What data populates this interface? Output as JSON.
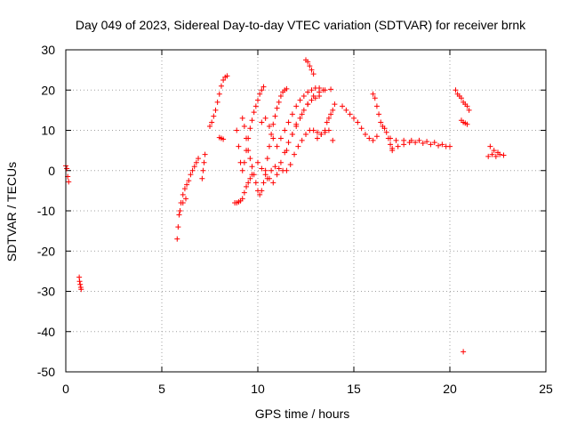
{
  "chart_data": {
    "type": "scatter",
    "title": "Day 049 of 2023, Sidereal Day-to-day VTEC variation (SDTVAR) for receiver brnk",
    "xlabel": "GPS time / hours",
    "ylabel": "SDTVAR / TECUs",
    "xlim": [
      0,
      25
    ],
    "ylim": [
      -50,
      30
    ],
    "xticks": [
      0,
      5,
      10,
      15,
      20,
      25
    ],
    "yticks": [
      -50,
      -40,
      -30,
      -20,
      -10,
      0,
      10,
      20,
      30
    ],
    "xtick_labels": [
      "0",
      "5",
      "10",
      "15",
      "20",
      "25"
    ],
    "ytick_labels": [
      "-50",
      "-40",
      "-30",
      "-20",
      "-10",
      "0",
      "10",
      "20",
      "30"
    ],
    "grid": true,
    "marker": "+",
    "color": "#ff0000",
    "series": [
      {
        "name": "a0",
        "x": [
          0.0,
          0.05,
          0.1,
          0.15
        ],
        "y": [
          1.2,
          0.5,
          -1.5,
          -2.8
        ]
      },
      {
        "name": "a1",
        "x": [
          0.7,
          0.72,
          0.75,
          0.78,
          0.8
        ],
        "y": [
          -26.5,
          -27.5,
          -28.3,
          -29.0,
          -29.5
        ]
      },
      {
        "name": "b",
        "x": [
          5.8,
          5.85,
          5.9,
          6.0,
          6.1,
          6.2,
          6.3,
          6.4,
          6.5,
          6.6,
          6.7,
          6.8,
          6.9
        ],
        "y": [
          -17.0,
          -14.0,
          -11.0,
          -8.0,
          -6.0,
          -4.5,
          -3.5,
          -2.5,
          -1.0,
          0.0,
          1.0,
          2.0,
          3.0
        ]
      },
      {
        "name": "b2",
        "x": [
          5.95,
          6.1,
          6.25
        ],
        "y": [
          -10.0,
          -8.0,
          -7.0
        ]
      },
      {
        "name": "c",
        "x": [
          7.1,
          7.15,
          7.2,
          7.25
        ],
        "y": [
          -2.0,
          0.0,
          2.0,
          4.0
        ]
      },
      {
        "name": "d",
        "x": [
          7.5,
          7.6,
          7.7,
          7.8,
          7.9,
          8.0,
          8.1,
          8.2,
          8.3,
          8.4
        ],
        "y": [
          11.0,
          12.0,
          13.5,
          15.0,
          17.0,
          19.0,
          21.0,
          22.5,
          23.2,
          23.5
        ]
      },
      {
        "name": "e",
        "x": [
          8.0,
          8.1,
          8.2
        ],
        "y": [
          8.2,
          8.0,
          7.8
        ]
      },
      {
        "name": "f",
        "x": [
          8.8,
          8.9,
          9.0,
          9.1,
          9.2,
          9.3,
          9.4,
          9.5,
          9.6,
          9.7
        ],
        "y": [
          -8.0,
          -8.0,
          -7.8,
          -7.5,
          -7.0,
          -5.5,
          -4.0,
          -3.0,
          -2.0,
          -1.0
        ]
      },
      {
        "name": "g",
        "x": [
          8.9,
          9.0,
          9.1,
          9.2,
          9.3,
          9.4,
          9.5,
          9.6,
          9.7,
          9.8,
          9.9,
          10.0,
          10.1,
          10.2,
          10.3
        ],
        "y": [
          10.0,
          6.0,
          2.0,
          0.0,
          2.0,
          5.0,
          8.0,
          10.5,
          12.5,
          14.5,
          16.0,
          17.5,
          19.0,
          20.0,
          20.8
        ]
      },
      {
        "name": "h",
        "x": [
          9.2,
          9.3,
          9.4,
          9.5,
          9.6,
          9.7,
          9.8,
          9.9,
          10.0,
          10.1,
          10.2,
          10.3,
          10.4,
          10.5,
          10.6,
          10.7,
          10.8,
          10.9,
          11.0,
          11.1,
          11.2,
          11.3,
          11.4,
          11.5
        ],
        "y": [
          13.0,
          11.0,
          8.0,
          5.0,
          3.0,
          1.0,
          -1.0,
          -3.0,
          -5.0,
          -6.0,
          -5.0,
          -3.0,
          0.0,
          3.0,
          6.0,
          9.0,
          11.5,
          13.5,
          15.5,
          17.0,
          18.5,
          19.5,
          20.0,
          20.3
        ]
      },
      {
        "name": "i",
        "x": [
          10.2,
          10.4,
          10.6,
          10.8,
          11.0,
          11.2,
          11.4,
          11.6,
          11.8,
          12.0,
          12.2,
          12.4,
          12.6,
          12.8,
          13.0,
          13.2,
          13.4
        ],
        "y": [
          12.0,
          13.0,
          11.0,
          8.0,
          6.0,
          8.0,
          10.0,
          12.0,
          14.0,
          16.0,
          17.5,
          18.5,
          19.5,
          20.0,
          20.5,
          20.5,
          20.0
        ]
      },
      {
        "name": "j",
        "x": [
          10.0,
          10.2,
          10.4,
          10.6,
          10.8,
          11.0,
          11.2,
          11.4,
          11.6,
          11.8,
          12.0,
          12.2,
          12.4,
          12.6,
          12.8,
          13.0,
          13.2
        ],
        "y": [
          2.0,
          0.5,
          -1.0,
          -2.0,
          -3.0,
          -1.0,
          2.0,
          4.5,
          7.0,
          9.0,
          11.0,
          13.0,
          15.0,
          16.5,
          17.5,
          18.0,
          18.5
        ]
      },
      {
        "name": "k",
        "x": [
          10.5,
          10.7,
          10.9,
          11.1,
          11.3,
          11.5,
          11.7,
          11.9,
          12.1,
          12.3,
          12.5,
          12.7,
          12.9,
          13.1,
          13.3,
          13.5,
          13.7
        ],
        "y": [
          -2.0,
          0.0,
          1.0,
          0.5,
          0.0,
          0.0,
          1.5,
          4.0,
          6.0,
          7.5,
          9.0,
          10.0,
          10.0,
          9.5,
          9.0,
          9.5,
          10.0
        ]
      },
      {
        "name": "l",
        "x": [
          11.5,
          11.8,
          12.0,
          12.3,
          12.6,
          12.9,
          13.2,
          13.5,
          13.8
        ],
        "y": [
          5.0,
          9.0,
          11.5,
          14.0,
          16.5,
          18.5,
          19.5,
          20.0,
          20.2
        ]
      },
      {
        "name": "m",
        "x": [
          12.5,
          12.6,
          12.7,
          12.8,
          12.9
        ],
        "y": [
          27.5,
          27.0,
          26.0,
          25.0,
          24.0
        ]
      },
      {
        "name": "n",
        "x": [
          13.1,
          13.3,
          13.5,
          13.6,
          13.7,
          13.8,
          13.9,
          14.0
        ],
        "y": [
          8.0,
          9.0,
          10.0,
          12.0,
          13.0,
          14.0,
          15.0,
          16.5
        ]
      },
      {
        "name": "o",
        "x": [
          13.9
        ],
        "y": [
          7.5
        ]
      },
      {
        "name": "p",
        "x": [
          14.4,
          14.6,
          14.8,
          15.0,
          15.2,
          15.4,
          15.6,
          15.8,
          16.0,
          16.2
        ],
        "y": [
          16.0,
          15.0,
          14.0,
          13.0,
          12.0,
          10.5,
          9.0,
          8.0,
          7.5,
          8.5
        ]
      },
      {
        "name": "q",
        "x": [
          16.0,
          16.1,
          16.2,
          16.3,
          16.4,
          16.5,
          16.6,
          16.7,
          16.8,
          16.9,
          17.0
        ],
        "y": [
          19.0,
          18.0,
          16.0,
          14.0,
          12.0,
          11.0,
          10.5,
          9.5,
          8.0,
          6.5,
          5.0
        ]
      },
      {
        "name": "r",
        "x": [
          16.9,
          17.2,
          17.6,
          18.0,
          18.4,
          18.8,
          19.2,
          19.6,
          20.0
        ],
        "y": [
          8.0,
          7.5,
          7.5,
          7.5,
          7.5,
          7.2,
          7.0,
          6.5,
          6.0
        ]
      },
      {
        "name": "s",
        "x": [
          17.0,
          17.3,
          17.6,
          17.9,
          18.2,
          18.6,
          19.0,
          19.4,
          19.8
        ],
        "y": [
          5.5,
          6.0,
          6.5,
          7.0,
          7.0,
          6.8,
          6.5,
          6.2,
          6.0
        ]
      },
      {
        "name": "t",
        "x": [
          20.3,
          20.4,
          20.5,
          20.6,
          20.7,
          20.8,
          20.9,
          21.0
        ],
        "y": [
          20.0,
          19.0,
          18.5,
          18.0,
          17.0,
          16.5,
          16.0,
          15.0
        ]
      },
      {
        "name": "u",
        "x": [
          20.6,
          20.7,
          20.8,
          20.9
        ],
        "y": [
          12.5,
          12.0,
          11.8,
          11.5
        ]
      },
      {
        "name": "v",
        "x": [
          20.7
        ],
        "y": [
          -45.0
        ]
      },
      {
        "name": "w",
        "x": [
          22.0,
          22.2,
          22.4,
          22.6,
          22.8
        ],
        "y": [
          3.5,
          4.0,
          3.5,
          4.0,
          3.8
        ]
      },
      {
        "name": "w2",
        "x": [
          22.1,
          22.3,
          22.5
        ],
        "y": [
          6.0,
          5.0,
          4.5
        ]
      }
    ]
  }
}
